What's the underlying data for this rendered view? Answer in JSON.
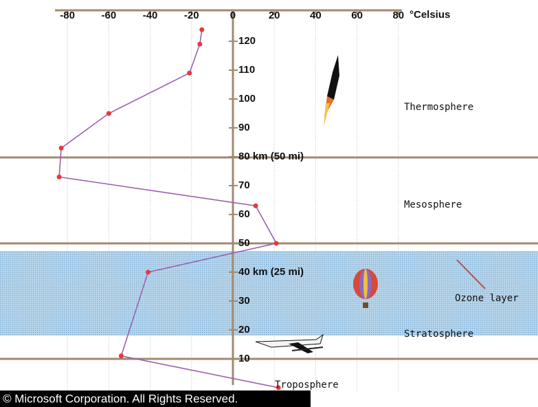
{
  "chart_data": {
    "type": "line",
    "x_label": "°Celsius",
    "x": [
      -15,
      -16,
      -21,
      -60,
      -83,
      -84,
      11,
      21,
      -41,
      -54,
      22
    ],
    "values": [
      124,
      119,
      109,
      95,
      83,
      73,
      63,
      50,
      40,
      11,
      0
    ],
    "color": "#9a5fb0",
    "marker_color": "#e8383a",
    "xlim": [
      -112.6,
      147.5
    ],
    "ylim": [
      -6.7,
      134.3
    ],
    "xticks": [
      -80,
      -60,
      -40,
      -20,
      0,
      20,
      40,
      60,
      80
    ],
    "yticks": [
      10,
      20,
      30,
      {
        "value": 40,
        "label": "40 km (25 mi)"
      },
      50,
      60,
      70,
      {
        "value": 80,
        "label": "80 km (50 mi)"
      },
      90,
      100,
      110,
      120
    ],
    "grid": true,
    "layers": [
      "Thermosphere",
      "Mesosphere",
      "Stratosphere",
      "Troposphere"
    ],
    "ozone_label": "Ozone layer",
    "copyright": "© Microsoft Corporation. All Rights Reserved."
  }
}
